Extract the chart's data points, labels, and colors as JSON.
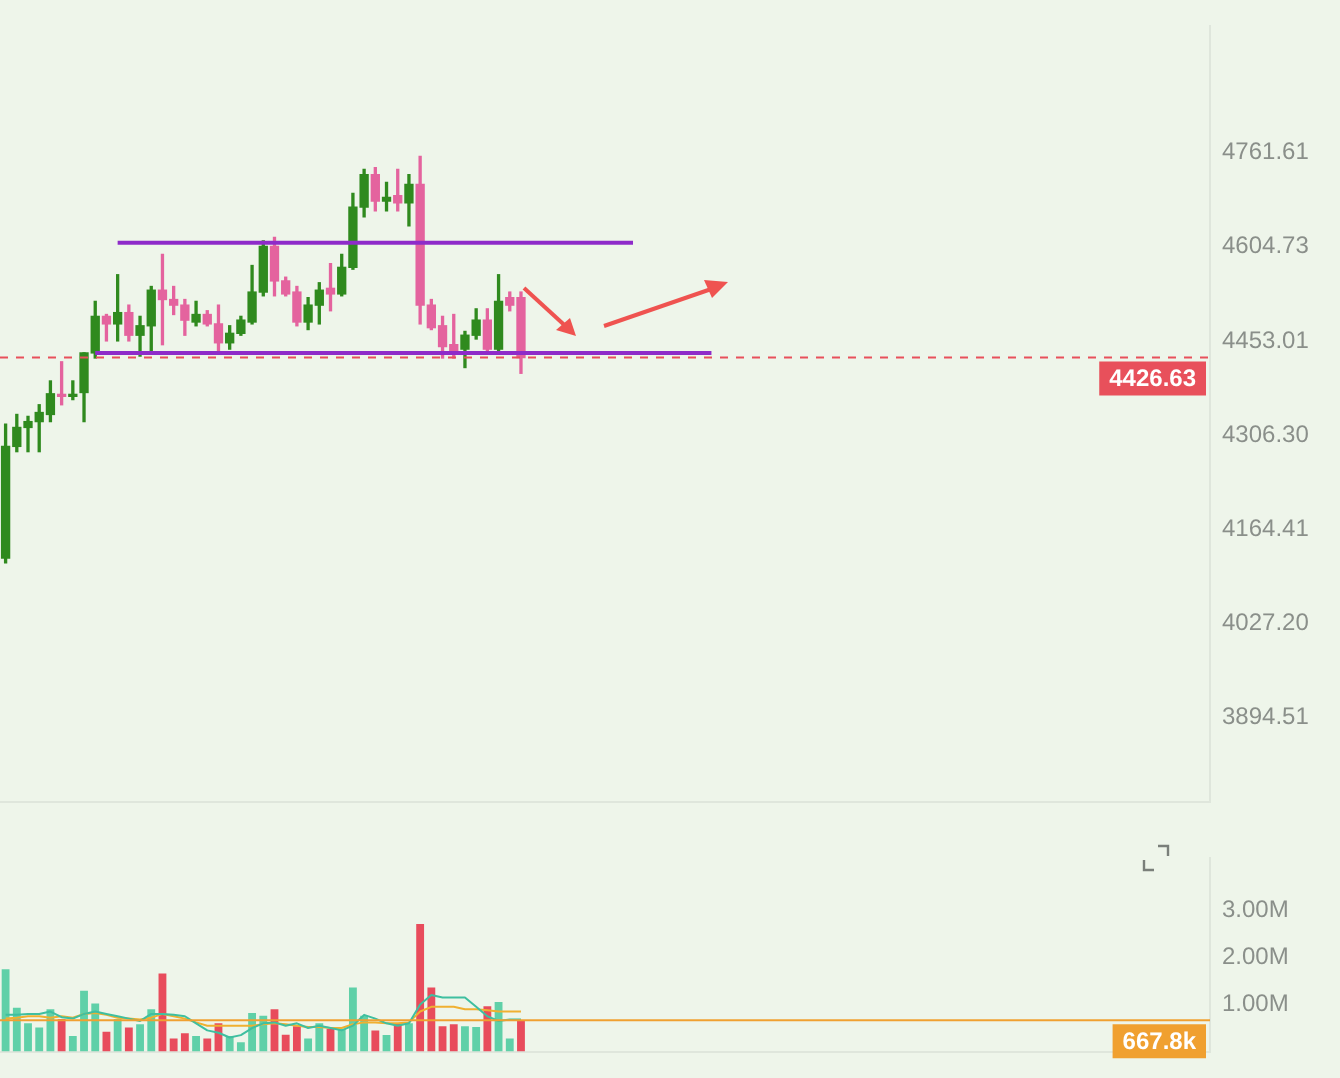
{
  "chart_data": [
    {
      "type": "candlestick",
      "log": "y",
      "grid": false,
      "legend": false,
      "tick_labels": "y",
      "categories": [
        null,
        null,
        null,
        null,
        null,
        null,
        null,
        null,
        null,
        null,
        null,
        null,
        null,
        null,
        null,
        null,
        null,
        null,
        null,
        null,
        null,
        null,
        null,
        null,
        null,
        null,
        null,
        null,
        null,
        null,
        null,
        null,
        null,
        null,
        null,
        null,
        null,
        null,
        null,
        null,
        null,
        null,
        null,
        null,
        null,
        null,
        null,
        null,
        null,
        null,
        null,
        null,
        null,
        null,
        null,
        null,
        null,
        null,
        null,
        null,
        null,
        null,
        null,
        null,
        null,
        null,
        null,
        null,
        null,
        null,
        null,
        null,
        null,
        null,
        null,
        null,
        null,
        null,
        null,
        null,
        null,
        null,
        null,
        null,
        null,
        null,
        null,
        null,
        null,
        null,
        null,
        null,
        null,
        null,
        null,
        null,
        null,
        null,
        null,
        null,
        null,
        null,
        null,
        null,
        null,
        null,
        null,
        null
      ],
      "ohlc": [
        [
          4122,
          4323,
          4115,
          4289
        ],
        [
          4289,
          4338,
          4281,
          4318
        ],
        [
          4318,
          4335,
          4281,
          4327
        ],
        [
          4327,
          4353,
          4281,
          4341
        ],
        [
          4338,
          4390,
          4327,
          4370
        ],
        [
          4369,
          4420,
          4353,
          4366
        ],
        [
          4366,
          4390,
          4361,
          4369
        ],
        [
          4372,
          4434,
          4327,
          4434
        ],
        [
          4434,
          4516,
          4426,
          4492
        ],
        [
          4492,
          4495,
          4453,
          4480
        ],
        [
          4480,
          4559,
          4453,
          4498
        ],
        [
          4498,
          4510,
          4453,
          4462
        ],
        [
          4462,
          4492,
          4429,
          4477
        ],
        [
          4477,
          4540,
          4434,
          4534
        ],
        [
          4534,
          4592,
          4447,
          4519
        ],
        [
          4519,
          4540,
          4495,
          4510
        ],
        [
          4510,
          4519,
          4462,
          4486
        ],
        [
          4483,
          4516,
          4477,
          4495
        ],
        [
          4495,
          4501,
          4477,
          4480
        ],
        [
          4480,
          4510,
          4434,
          4450
        ],
        [
          4450,
          4477,
          4440,
          4465
        ],
        [
          4465,
          4492,
          4462,
          4486
        ],
        [
          4483,
          4574,
          4480,
          4531
        ],
        [
          4531,
          4614,
          4525,
          4605
        ],
        [
          4605,
          4620,
          4525,
          4549
        ],
        [
          4549,
          4555,
          4525,
          4528
        ],
        [
          4531,
          4540,
          4477,
          4483
        ],
        [
          4483,
          4522,
          4471,
          4510
        ],
        [
          4510,
          4546,
          4480,
          4534
        ],
        [
          4537,
          4577,
          4501,
          4528
        ],
        [
          4528,
          4592,
          4525,
          4571
        ],
        [
          4571,
          4693,
          4568,
          4670
        ],
        [
          4670,
          4733,
          4654,
          4724
        ],
        [
          4724,
          4736,
          4664,
          4680
        ],
        [
          4680,
          4711,
          4664,
          4686
        ],
        [
          4689,
          4733,
          4664,
          4677
        ],
        [
          4677,
          4724,
          4639,
          4708
        ],
        [
          4708,
          4755,
          4480,
          4510
        ],
        [
          4510,
          4519,
          4471,
          4474
        ],
        [
          4477,
          4492,
          4426,
          4444
        ],
        [
          4447,
          4495,
          4426,
          4437
        ],
        [
          4440,
          4468,
          4411,
          4462
        ],
        [
          4462,
          4504,
          4456,
          4486
        ],
        [
          4486,
          4504,
          4434,
          4440
        ],
        [
          4440,
          4559,
          4434,
          4516
        ],
        [
          4522,
          4531,
          4501,
          4510
        ],
        [
          4522,
          4531,
          4402,
          4426.63
        ],
        null,
        null,
        null,
        null,
        null,
        null,
        null,
        null,
        null,
        null,
        null,
        null,
        null,
        null,
        null,
        null,
        null,
        null,
        null,
        null,
        null,
        null,
        null,
        null,
        null,
        null,
        null,
        null,
        null,
        null,
        null,
        null,
        null,
        null,
        null,
        null,
        null,
        null,
        null,
        null,
        null,
        null,
        null,
        null,
        null,
        null,
        null,
        null,
        null,
        null,
        null,
        null,
        null,
        null,
        null,
        null,
        null,
        null,
        null,
        null,
        null
      ],
      "colors": [
        "#2f8a1e",
        "#2f8a1e",
        "#2f8a1e",
        "#2f8a1e",
        "#2f8a1e",
        "#e4639e",
        "#2f8a1e",
        "#2f8a1e",
        "#2f8a1e",
        "#e4639e",
        "#2f8a1e",
        "#e4639e",
        "#2f8a1e",
        "#2f8a1e",
        "#e4639e",
        "#e4639e",
        "#e4639e",
        "#2f8a1e",
        "#e4639e",
        "#e4639e",
        "#2f8a1e",
        "#2f8a1e",
        "#2f8a1e",
        "#2f8a1e",
        "#e4639e",
        "#e4639e",
        "#e4639e",
        "#2f8a1e",
        "#2f8a1e",
        "#e4639e",
        "#2f8a1e",
        "#2f8a1e",
        "#2f8a1e",
        "#e4639e",
        "#2f8a1e",
        "#e4639e",
        "#2f8a1e",
        "#e4639e",
        "#e4639e",
        "#e4639e",
        "#e4639e",
        "#2f8a1e",
        "#2f8a1e",
        "#e4639e",
        "#2f8a1e",
        "#e4639e",
        "#e4639e",
        null,
        null,
        null,
        null,
        null,
        null,
        null,
        null,
        null,
        null,
        null,
        null,
        null,
        null,
        null,
        null,
        null,
        null,
        null,
        null,
        null,
        null,
        null,
        null,
        null,
        null,
        null,
        null,
        null,
        null,
        null,
        null,
        null,
        null,
        null,
        null,
        null,
        null,
        null,
        null,
        null,
        null,
        null,
        null,
        null,
        null,
        null,
        null,
        null,
        null,
        null,
        null,
        null,
        null,
        null,
        null,
        null,
        null,
        null,
        null,
        null
      ],
      "series": [
        {
          "type": "line",
          "color": "#8e2bc9",
          "values": [
            null,
            null,
            null,
            null,
            null,
            null,
            null,
            null,
            null,
            null,
            4611,
            4611,
            4611,
            4611,
            4611,
            4611,
            4611,
            4611,
            4611,
            4611,
            4611,
            4611,
            4611,
            4611,
            4611,
            4611,
            4611,
            4611,
            4611,
            4611,
            4611,
            4611,
            4611,
            4611,
            4611,
            4611,
            4611,
            4611,
            4611,
            4611,
            4611,
            4611,
            4611,
            4611,
            4611,
            4611,
            4611,
            4611,
            4611,
            4611,
            4611,
            4611,
            4611,
            4611,
            4611,
            4611,
            4611,
            null,
            null,
            null,
            null,
            null,
            null,
            null,
            null,
            null,
            null,
            null,
            null,
            null,
            null,
            null,
            null,
            null,
            null,
            null,
            null,
            null,
            null,
            null,
            null,
            null,
            null,
            null,
            null,
            null,
            null,
            null,
            null,
            null,
            null,
            null,
            null,
            null,
            null,
            null,
            null,
            null,
            null,
            null,
            null,
            null,
            null,
            null,
            null,
            null,
            null,
            null
          ]
        },
        {
          "type": "line",
          "color": "#8e2bc9",
          "values": [
            null,
            null,
            null,
            null,
            null,
            null,
            null,
            null,
            4434,
            4434,
            4434,
            4434,
            4434,
            4434,
            4434,
            4434,
            4434,
            4434,
            4434,
            4434,
            4434,
            4434,
            4434,
            4434,
            4434,
            4434,
            4434,
            4434,
            4434,
            4434,
            4434,
            4434,
            4434,
            4434,
            4434,
            4434,
            4434,
            4434,
            4434,
            4434,
            4434,
            4434,
            4434,
            4434,
            4434,
            4434,
            4434,
            4434,
            4434,
            4434,
            4434,
            4434,
            4434,
            4434,
            4434,
            4434,
            4434,
            4434,
            4434,
            4434,
            4434,
            4434,
            4434,
            4434,
            null,
            null,
            null,
            null,
            null,
            null,
            null,
            null,
            null,
            null,
            null,
            null,
            null,
            null,
            null,
            null,
            null,
            null,
            null,
            null,
            null,
            null,
            null,
            null,
            null,
            null,
            null,
            null,
            null,
            null,
            null,
            null,
            null,
            null,
            null,
            null,
            null,
            null,
            null,
            null,
            null,
            null,
            null,
            null
          ]
        }
      ],
      "ylim": [
        3780,
        4980
      ],
      "yticks": [
        {
          "value": 3894.51,
          "label": "3894.51"
        },
        {
          "value": 4027.2,
          "label": "4027.20"
        },
        4164.41,
        {
          "value": 4306.3,
          "label": "4306.30"
        },
        4453.01,
        4604.73,
        4761.61
      ],
      "ref_lines": [
        {
          "axis": "y",
          "value": 4426.63,
          "label": "4426.63",
          "color": "#e8505b",
          "line_style": "dashed"
        }
      ]
    },
    {
      "type": "bar",
      "grid": false,
      "legend": false,
      "tick_labels": "y",
      "categories": [
        null,
        null,
        null,
        null,
        null,
        null,
        null,
        null,
        null,
        null,
        null,
        null,
        null,
        null,
        null,
        null,
        null,
        null,
        null,
        null,
        null,
        null,
        null,
        null,
        null,
        null,
        null,
        null,
        null,
        null,
        null,
        null,
        null,
        null,
        null,
        null,
        null,
        null,
        null,
        null,
        null,
        null,
        null,
        null,
        null,
        null,
        null,
        null,
        null,
        null,
        null,
        null,
        null,
        null,
        null,
        null,
        null,
        null,
        null,
        null,
        null,
        null,
        null,
        null,
        null,
        null,
        null,
        null,
        null,
        null,
        null,
        null,
        null,
        null,
        null,
        null,
        null,
        null,
        null,
        null,
        null,
        null,
        null,
        null,
        null,
        null,
        null,
        null,
        null,
        null,
        null,
        null,
        null,
        null,
        null,
        null,
        null,
        null,
        null,
        null,
        null,
        null,
        null,
        null,
        null,
        null,
        null,
        null
      ],
      "series": [
        {
          "type": "bar",
          "values": [
            1.75,
            0.93,
            0.6,
            0.51,
            0.9,
            0.69,
            0.33,
            1.29,
            1.02,
            0.42,
            0.69,
            0.51,
            0.58,
            0.9,
            1.66,
            0.28,
            0.39,
            0.33,
            0.28,
            0.6,
            0.33,
            0.2,
            0.82,
            0.76,
            0.9,
            0.36,
            0.54,
            0.28,
            0.6,
            0.48,
            0.48,
            1.36,
            0.76,
            0.45,
            0.35,
            0.6,
            0.6,
            2.71,
            1.36,
            0.54,
            0.58,
            0.54,
            0.52,
            0.96,
            1.05,
            0.28,
            0.6678,
            null,
            null,
            null,
            null,
            null,
            null,
            null,
            null,
            null,
            null,
            null,
            null,
            null,
            null,
            null,
            null,
            null,
            null,
            null,
            null,
            null,
            null,
            null,
            null,
            null,
            null,
            null,
            null,
            null,
            null,
            null,
            null,
            null,
            null,
            null,
            null,
            null,
            null,
            null,
            null,
            null,
            null,
            null,
            null,
            null,
            null,
            null,
            null,
            null,
            null,
            null,
            null,
            null,
            null,
            null,
            null,
            null,
            null,
            null,
            null,
            null
          ],
          "colors": [
            "#5fd0a8",
            "#5fd0a8",
            "#5fd0a8",
            "#5fd0a8",
            "#5fd0a8",
            "#e84c5c",
            "#5fd0a8",
            "#5fd0a8",
            "#5fd0a8",
            "#e84c5c",
            "#5fd0a8",
            "#e84c5c",
            "#5fd0a8",
            "#5fd0a8",
            "#e84c5c",
            "#e84c5c",
            "#e84c5c",
            "#5fd0a8",
            "#e84c5c",
            "#e84c5c",
            "#5fd0a8",
            "#5fd0a8",
            "#5fd0a8",
            "#5fd0a8",
            "#e84c5c",
            "#e84c5c",
            "#e84c5c",
            "#5fd0a8",
            "#5fd0a8",
            "#e84c5c",
            "#5fd0a8",
            "#5fd0a8",
            "#5fd0a8",
            "#e84c5c",
            "#5fd0a8",
            "#e84c5c",
            "#5fd0a8",
            "#e84c5c",
            "#e84c5c",
            "#e84c5c",
            "#e84c5c",
            "#5fd0a8",
            "#5fd0a8",
            "#e84c5c",
            "#5fd0a8",
            "#5fd0a8",
            "#e84c5c",
            null,
            null,
            null,
            null,
            null,
            null,
            null,
            null,
            null,
            null,
            null,
            null,
            null,
            null,
            null,
            null,
            null,
            null,
            null,
            null,
            null,
            null,
            null,
            null,
            null,
            null,
            null,
            null,
            null,
            null,
            null,
            null,
            null,
            null,
            null,
            null,
            null,
            null,
            null,
            null,
            null,
            null,
            null,
            null,
            null,
            null,
            null,
            null,
            null,
            null,
            null,
            null,
            null,
            null,
            null,
            null,
            null,
            null,
            null,
            null,
            null
          ]
        },
        {
          "type": "line",
          "color": "#3fbfa0",
          "values": [
            0.78,
            0.78,
            0.8,
            0.8,
            0.85,
            0.73,
            0.7,
            0.8,
            0.85,
            0.8,
            0.75,
            0.7,
            0.65,
            0.8,
            0.8,
            0.78,
            0.75,
            0.6,
            0.45,
            0.4,
            0.3,
            0.35,
            0.5,
            0.6,
            0.62,
            0.55,
            0.6,
            0.5,
            0.55,
            0.5,
            0.45,
            0.55,
            0.78,
            0.7,
            0.6,
            0.55,
            0.6,
            1.0,
            1.2,
            1.15,
            1.15,
            1.15,
            0.95,
            0.75,
            0.65,
            0.68,
            0.68,
            null,
            null,
            null,
            null,
            null,
            null,
            null,
            null,
            null,
            null,
            null,
            null,
            null,
            null,
            null,
            null,
            null,
            null,
            null,
            null,
            null,
            null,
            null,
            null,
            null,
            null,
            null,
            null,
            null,
            null,
            null,
            null,
            null,
            null,
            null,
            null,
            null,
            null,
            null,
            null,
            null,
            null,
            null,
            null,
            null,
            null,
            null,
            null,
            null,
            null,
            null,
            null,
            null,
            null,
            null,
            null,
            null,
            null,
            null,
            null,
            null
          ]
        },
        {
          "type": "line",
          "color": "#f0b030",
          "values": [
            0.7,
            0.72,
            0.75,
            0.75,
            0.72,
            0.75,
            0.72,
            0.8,
            0.82,
            0.78,
            0.72,
            0.7,
            0.68,
            0.72,
            0.8,
            0.75,
            0.7,
            0.62,
            0.55,
            0.55,
            0.55,
            0.55,
            0.55,
            0.58,
            0.6,
            0.58,
            0.55,
            0.52,
            0.52,
            0.5,
            0.5,
            0.58,
            0.62,
            0.62,
            0.6,
            0.6,
            0.62,
            0.85,
            0.95,
            0.95,
            0.95,
            0.9,
            0.9,
            0.88,
            0.85,
            0.85,
            0.85,
            null,
            null,
            null,
            null,
            null,
            null,
            null,
            null,
            null,
            null,
            null,
            null,
            null,
            null,
            null,
            null,
            null,
            null,
            null,
            null,
            null,
            null,
            null,
            null,
            null,
            null,
            null,
            null,
            null,
            null,
            null,
            null,
            null,
            null,
            null,
            null,
            null,
            null,
            null,
            null,
            null,
            null,
            null,
            null,
            null,
            null,
            null,
            null,
            null,
            null,
            null,
            null,
            null,
            null,
            null,
            null,
            null,
            null,
            null,
            null,
            null
          ]
        }
      ],
      "ylim": [
        0,
        4.1
      ],
      "yticks": [
        {
          "value": 1,
          "label": "1.00M"
        },
        {
          "value": 2,
          "label": "2.00M"
        },
        {
          "value": 3,
          "label": "3.00M"
        }
      ],
      "ref_lines": [
        {
          "axis": "y",
          "value": 0.6678,
          "label": "667.8k",
          "color": "#f0a030",
          "line_style": "solid"
        }
      ]
    }
  ]
}
